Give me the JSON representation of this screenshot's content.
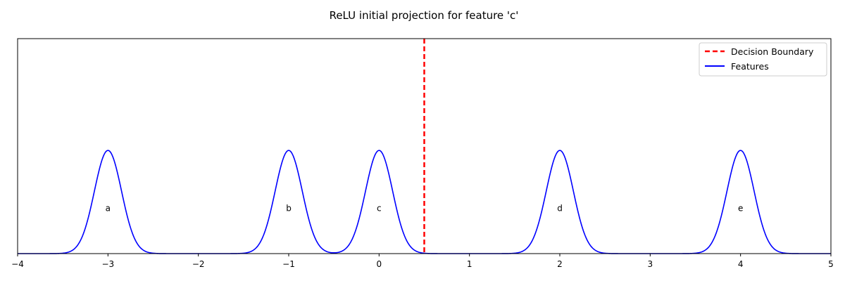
{
  "chart_data": {
    "type": "line",
    "title": "ReLU initial projection for feature 'c'",
    "xlabel": "",
    "ylabel": "",
    "xlim": [
      -4,
      5
    ],
    "ylim": [
      0,
      1
    ],
    "x_ticks": [
      -4,
      -3,
      -2,
      -1,
      0,
      1,
      2,
      3,
      4,
      5
    ],
    "x_tick_labels": [
      "−4",
      "−3",
      "−2",
      "−1",
      "0",
      "1",
      "2",
      "3",
      "4",
      "5"
    ],
    "y_ticks_visible": false,
    "grid": false,
    "legend": {
      "placement": "top-right",
      "entries": [
        {
          "label": "Decision Boundary",
          "color": "#ff0000",
          "style": "dashed"
        },
        {
          "label": "Features",
          "color": "#0000ff",
          "style": "solid"
        }
      ]
    },
    "decision_boundary": {
      "x": 0.5,
      "color": "#ff0000",
      "style": "dashed"
    },
    "series": [
      {
        "name": "Features",
        "color": "#0000ff",
        "shape": "gaussian",
        "peak_height": 0.48,
        "sigma": 0.15,
        "peaks": [
          {
            "label": "a",
            "center": -3
          },
          {
            "label": "b",
            "center": -1
          },
          {
            "label": "c",
            "center": 0
          },
          {
            "label": "d",
            "center": 2
          },
          {
            "label": "e",
            "center": 4
          }
        ]
      }
    ],
    "annotations": [
      {
        "text": "a",
        "x": -3,
        "y": 0.21
      },
      {
        "text": "b",
        "x": -1,
        "y": 0.21
      },
      {
        "text": "c",
        "x": 0,
        "y": 0.21
      },
      {
        "text": "d",
        "x": 2,
        "y": 0.21
      },
      {
        "text": "e",
        "x": 4,
        "y": 0.21
      }
    ]
  }
}
